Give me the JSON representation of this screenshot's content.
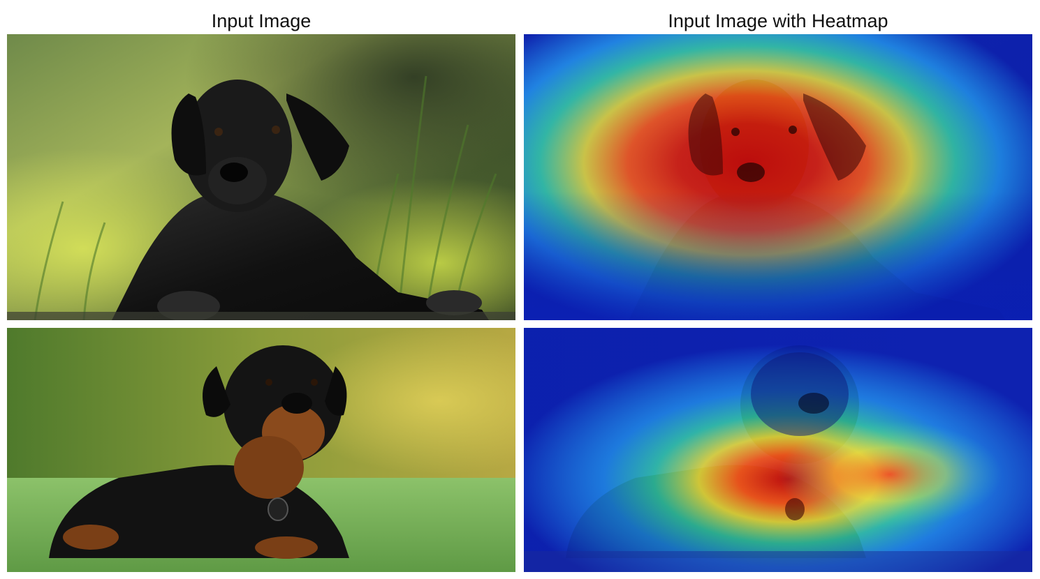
{
  "titles": {
    "left": "Input Image",
    "right": "Input Image with Heatmap"
  },
  "colors": {
    "background": "#ffffff",
    "heat_cold": "#0a1fb4",
    "heat_cool": "#1e9bff",
    "heat_mid": "#36e0b0",
    "heat_warm": "#f2e63a",
    "heat_hot": "#ff5a1a",
    "heat_peak": "#c40d0d"
  },
  "panels": [
    {
      "id": "row1-input",
      "subject": "black labrador puppy lying on grass, bokeh green background"
    },
    {
      "id": "row1-heatmap",
      "subject": "same photo with heatmap overlay centered on dog's head and chest"
    },
    {
      "id": "row2-input",
      "subject": "rottweiler lying on lawn, green and yellow foliage background"
    },
    {
      "id": "row2-heatmap",
      "subject": "same photo with heatmap overlay centered on dog's chest and muzzle"
    }
  ]
}
